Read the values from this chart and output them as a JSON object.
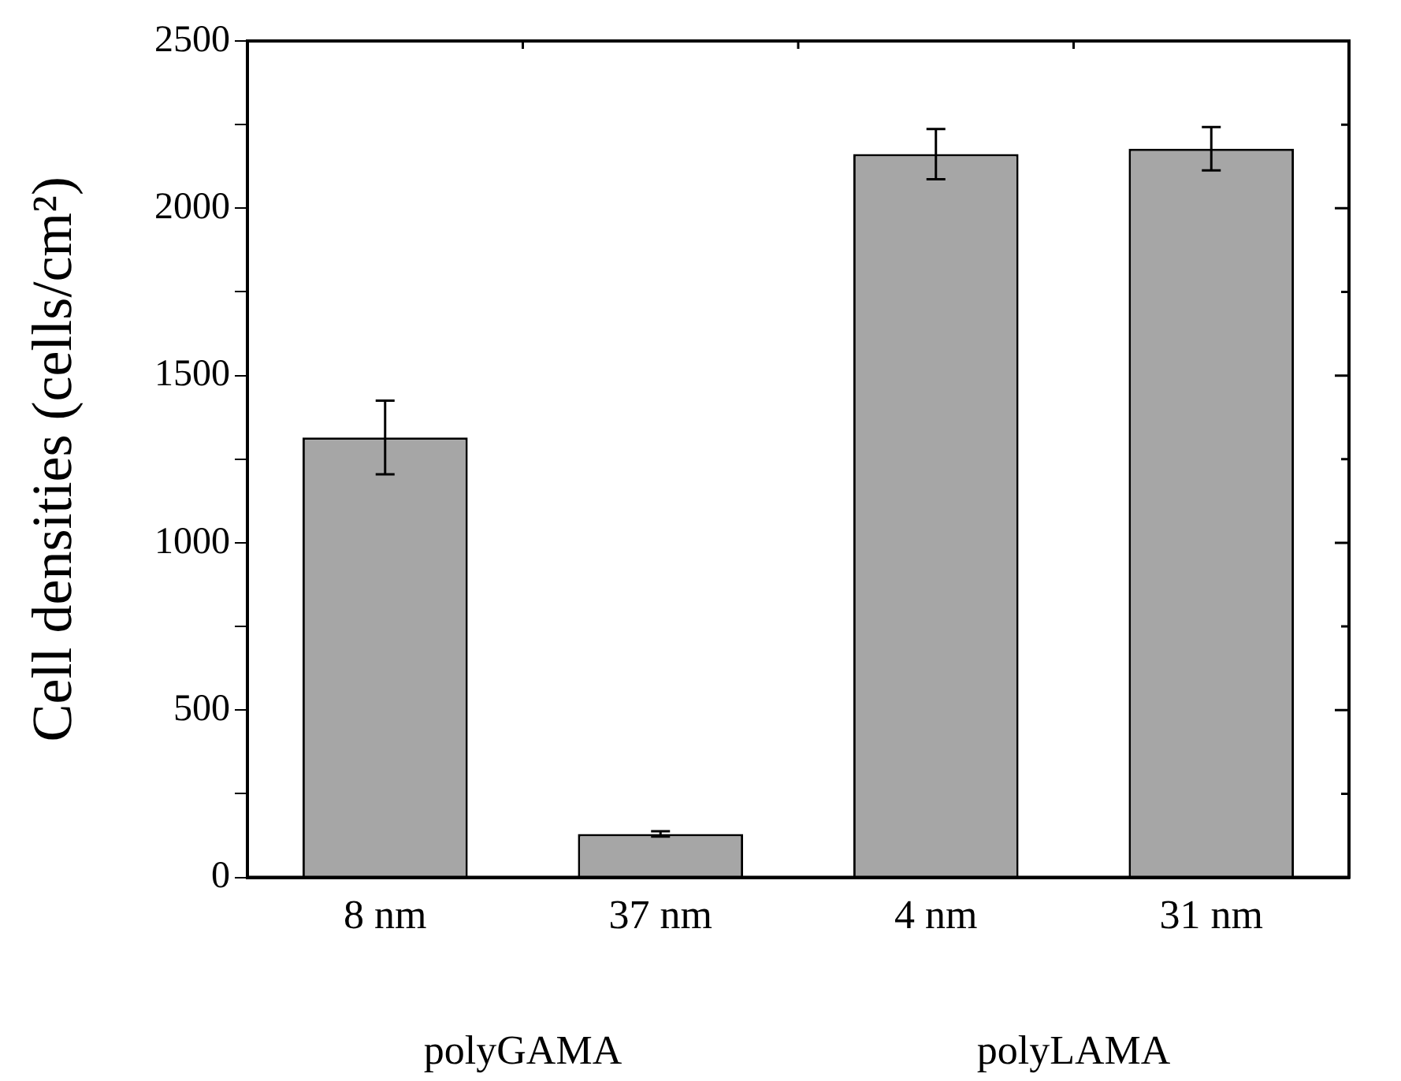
{
  "chart_data": {
    "type": "bar",
    "ylabel": "Cell densities (cells/cm²)",
    "categories": [
      "8 nm",
      "37 nm",
      "4 nm",
      "31 nm"
    ],
    "values": [
      1315,
      130,
      2162,
      2178
    ],
    "errors": [
      110,
      8,
      75,
      65
    ],
    "color": "#a6a6a6",
    "ylim": [
      0,
      2500
    ],
    "yticks": [
      0,
      {
        "value": 250,
        "label": null
      },
      500,
      {
        "value": 750,
        "label": null
      },
      1000,
      {
        "value": 1250,
        "label": null
      },
      1500,
      {
        "value": 1750,
        "label": null
      },
      2000,
      {
        "value": 2250,
        "label": null
      },
      2500
    ],
    "grid": false,
    "legend": false,
    "annotations": [
      "polyGAMA",
      "polyLAMA"
    ]
  }
}
